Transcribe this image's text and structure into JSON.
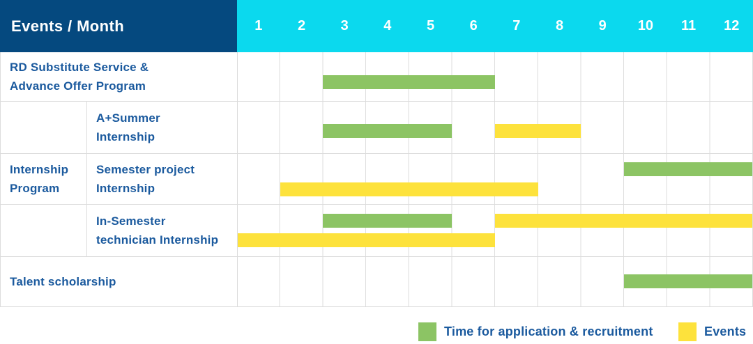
{
  "header": {
    "title": "Events / Month"
  },
  "chart_data": {
    "type": "gantt",
    "unit": "month",
    "months": [
      "1",
      "2",
      "3",
      "4",
      "5",
      "6",
      "7",
      "8",
      "9",
      "10",
      "11",
      "12"
    ],
    "group": {
      "label": "Internship Program",
      "label_lines": [
        "Internship",
        "Program"
      ],
      "member_rows": [
        1,
        2,
        3
      ]
    },
    "rows": [
      {
        "label": "RD Substitute Service & Advance Offer Program",
        "label_lines": [
          "RD Substitute Service &",
          "Advance Offer Program"
        ],
        "bars": [
          {
            "type": "application",
            "start": 3,
            "end": 6,
            "lane": 0
          }
        ]
      },
      {
        "label": "A+Summer Internship",
        "label_lines": [
          "A+Summer",
          "Internship"
        ],
        "group": "Internship Program",
        "bars": [
          {
            "type": "application",
            "start": 3,
            "end": 5,
            "lane": 0
          },
          {
            "type": "event",
            "start": 7,
            "end": 8,
            "lane": 0
          }
        ]
      },
      {
        "label": "Semester project Internship",
        "label_lines": [
          "Semester project",
          "Internship"
        ],
        "group": "Internship Program",
        "bars": [
          {
            "type": "application",
            "start": 10,
            "end": 12,
            "lane": 0
          },
          {
            "type": "event",
            "start": 2,
            "end": 7,
            "lane": 1
          }
        ]
      },
      {
        "label": "In-Semester technician Internship",
        "label_lines": [
          "In-Semester",
          "technician Internship"
        ],
        "group": "Internship Program",
        "bars": [
          {
            "type": "application",
            "start": 3,
            "end": 5,
            "lane": 0
          },
          {
            "type": "event",
            "start": 7,
            "end": 12,
            "lane": 0
          },
          {
            "type": "event",
            "start": 1,
            "end": 6,
            "lane": 1
          }
        ]
      },
      {
        "label": "Talent scholarship",
        "label_lines": [
          "Talent scholarship"
        ],
        "bars": [
          {
            "type": "application",
            "start": 10,
            "end": 12,
            "lane": 0
          }
        ]
      }
    ],
    "legend": [
      {
        "type": "application",
        "label": "Time for application & recruitment",
        "color": "#8CC464"
      },
      {
        "type": "event",
        "label": "Events",
        "color": "#FDE23C"
      }
    ],
    "colors": {
      "corner_header_bg": "#05497F",
      "month_header_bg": "#0BD9EE",
      "header_text": "#FFFFFF",
      "label_text": "#1B5A9E",
      "application_bar": "#8CC464",
      "event_bar": "#FDE23C",
      "grid_line": "#DCDCDC"
    },
    "layout_hints": {
      "legend_position": "bottom-right",
      "grid": true,
      "x_range": [
        1,
        12
      ]
    }
  }
}
